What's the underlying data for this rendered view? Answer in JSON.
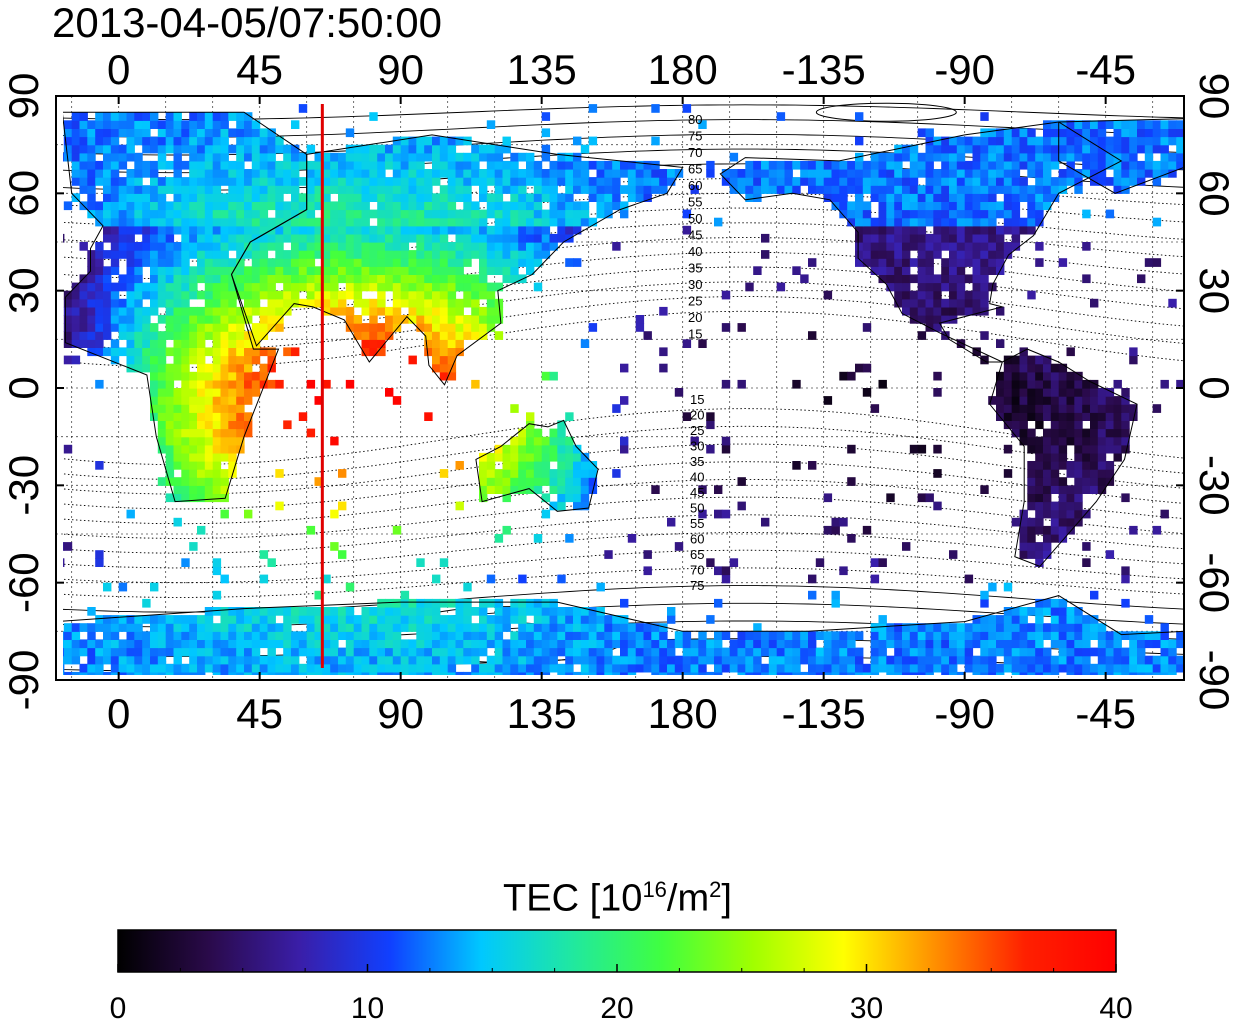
{
  "header": {
    "timestamp": "2013-04-05/07:50:00"
  },
  "map": {
    "projection": "equirectangular",
    "longitude_range": [
      -20,
      340
    ],
    "latitude_range": [
      -90,
      90
    ],
    "top_axis_labels": [
      "0",
      "45",
      "90",
      "135",
      "180",
      "-135",
      "-90",
      "-45"
    ],
    "bottom_axis_labels": [
      "0",
      "45",
      "90",
      "135",
      "180",
      "-135",
      "-90",
      "-45"
    ],
    "left_axis_labels": [
      "90",
      "60",
      "30",
      "0",
      "-30",
      "-60",
      "-90"
    ],
    "right_axis_labels": [
      "90",
      "60",
      "30",
      "0",
      "-30",
      "-60",
      "-90"
    ],
    "lon_tick_values": [
      0,
      45,
      90,
      135,
      180,
      225,
      270,
      315
    ],
    "lat_tick_values": [
      90,
      60,
      30,
      0,
      -30,
      -60,
      -90
    ],
    "terminator_longitude": 65,
    "terminator_color": "#e00000",
    "contour_labels_north": [
      "80",
      "75",
      "70",
      "65",
      "60",
      "55",
      "50",
      "45",
      "40",
      "35",
      "30",
      "25",
      "20",
      "15"
    ],
    "contour_labels_south": [
      "15",
      "20",
      "25",
      "30",
      "35",
      "40",
      "45",
      "50",
      "55",
      "60",
      "65",
      "70",
      "75"
    ]
  },
  "colorbar": {
    "title_main": "TEC  [10",
    "title_exp": "16",
    "title_mid": "/m",
    "title_exp2": "2",
    "title_end": "]",
    "min": 0,
    "max": 40,
    "tick_labels": [
      "0",
      "10",
      "20",
      "30",
      "40"
    ],
    "tick_values": [
      0,
      10,
      20,
      30,
      40
    ],
    "stops": [
      "#000000",
      "#2a0a4a",
      "#3a1ea8",
      "#1040ff",
      "#00c8ff",
      "#20e8a0",
      "#40ff40",
      "#a0ff00",
      "#ffff00",
      "#ff9000",
      "#ff2000",
      "#ff0000"
    ]
  }
}
